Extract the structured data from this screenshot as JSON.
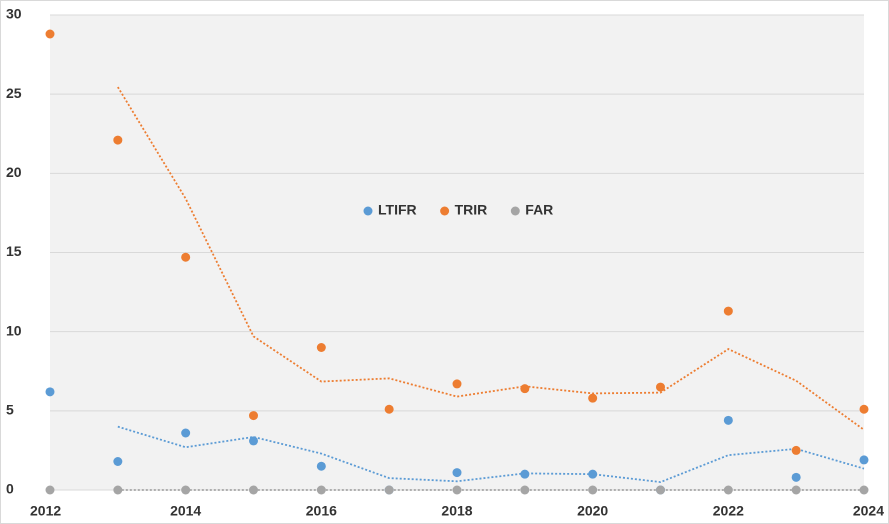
{
  "chart_data": {
    "type": "scatter",
    "x": [
      2012,
      2013,
      2014,
      2015,
      2016,
      2017,
      2018,
      2019,
      2020,
      2021,
      2022,
      2023,
      2024
    ],
    "series": [
      {
        "name": "LTIFR",
        "color": "#5b9bd5",
        "values": [
          6.2,
          1.8,
          3.6,
          3.1,
          1.5,
          0,
          1.1,
          1.0,
          1.0,
          0,
          4.4,
          0.8,
          1.9
        ]
      },
      {
        "name": "TRIR",
        "color": "#ed7d31",
        "values": [
          28.8,
          22.1,
          14.7,
          4.7,
          9.0,
          5.1,
          6.7,
          6.4,
          5.8,
          6.5,
          11.3,
          2.5,
          5.1
        ]
      },
      {
        "name": "FAR",
        "color": "#a5a5a5",
        "values": [
          0,
          0,
          0,
          0,
          0,
          0,
          0,
          0,
          0,
          0,
          0,
          0,
          0
        ]
      }
    ],
    "trendline": {
      "type": "moving_average",
      "period": 2
    },
    "xlim": [
      2012,
      2024
    ],
    "xticks": [
      2012,
      2014,
      2016,
      2018,
      2020,
      2022,
      2024
    ],
    "ylim": [
      0,
      30
    ],
    "yticks": [
      0,
      5,
      10,
      15,
      20,
      25,
      30
    ],
    "grid": true,
    "legend": "center"
  }
}
